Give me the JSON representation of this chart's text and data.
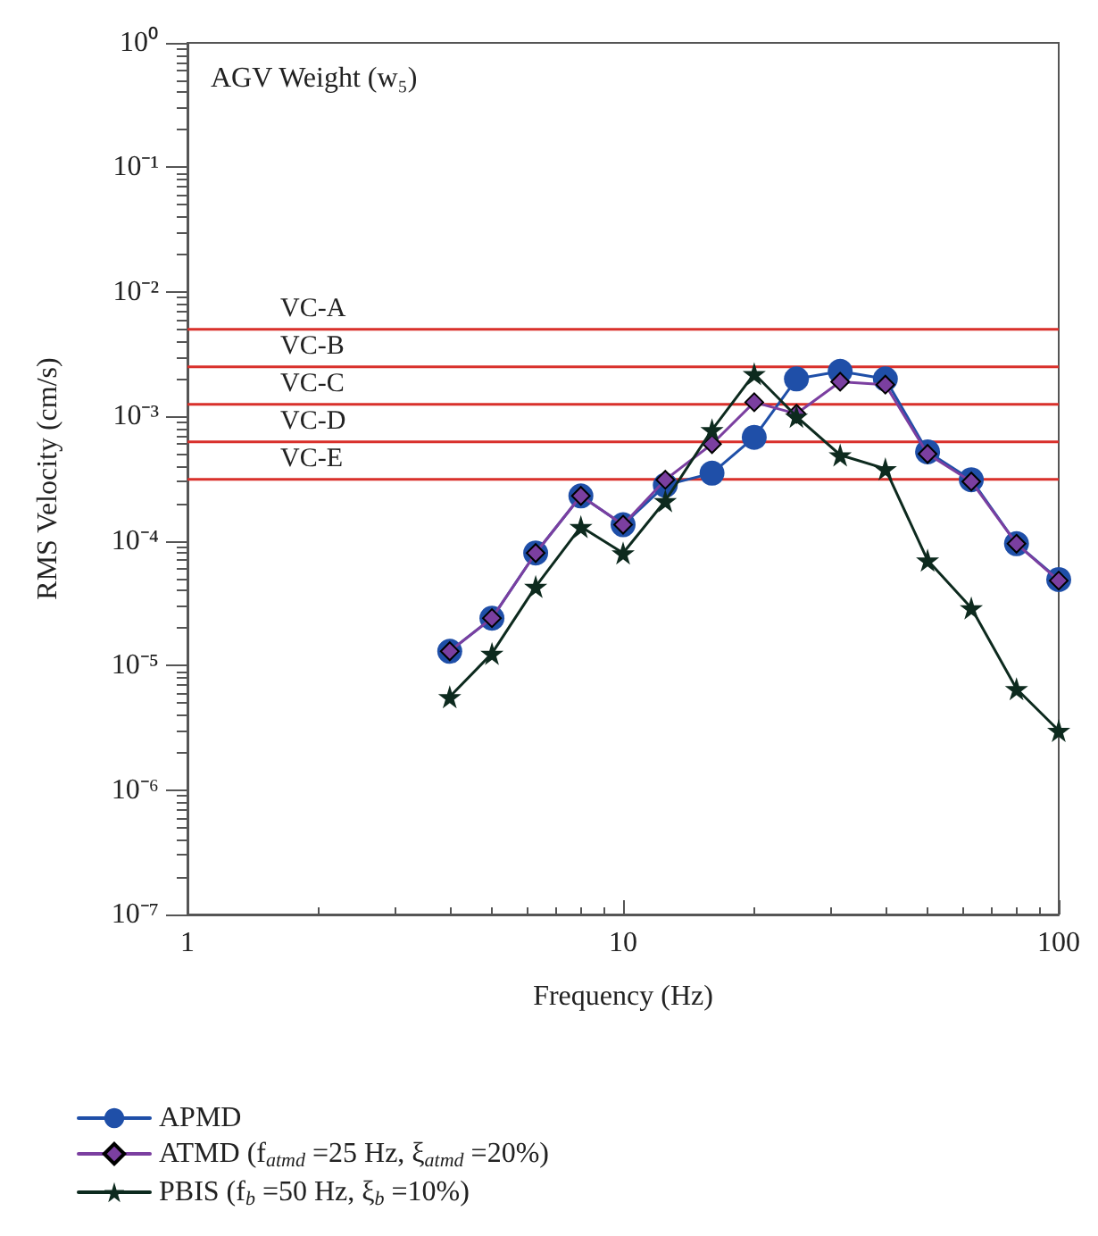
{
  "chart_data": {
    "type": "line",
    "xlabel": "Frequency (Hz)",
    "ylabel": "RMS Velocity (cm/s)",
    "log": "xy",
    "grid": false,
    "legend": "bottom left",
    "line_style": "solid",
    "annotations": [
      "AGV Weight (w₅)"
    ],
    "x": [
      4,
      5,
      6.3,
      8,
      10,
      12.5,
      16,
      20,
      25,
      31.5,
      40,
      50,
      63,
      80,
      100
    ],
    "xlim": [
      1,
      100
    ],
    "xticks": [
      1,
      10,
      100
    ],
    "ylim": [
      1e-07,
      1
    ],
    "yticks": [
      {
        "value": 1e-07,
        "label": "10⁻⁷"
      },
      {
        "value": 1e-06,
        "label": "10⁻⁶"
      },
      {
        "value": 1e-05,
        "label": "10⁻⁵"
      },
      {
        "value": 0.0001,
        "label": "10⁻⁴"
      },
      {
        "value": 0.001,
        "label": "10⁻³"
      },
      {
        "value": 0.01,
        "label": "10⁻²"
      },
      {
        "value": 0.1,
        "label": "10⁻¹"
      },
      {
        "value": 1,
        "label": "10⁰"
      }
    ],
    "series": [
      {
        "name": "APMD",
        "color": "#1f4fa8",
        "marker": "circle",
        "values": [
          1.3e-05,
          2.4e-05,
          8e-05,
          0.00023,
          0.000135,
          0.00028,
          0.00035,
          0.00068,
          0.002,
          0.0023,
          0.002,
          0.00052,
          0.00031,
          9.5e-05,
          4.9e-05
        ]
      },
      {
        "name": "ATMD (f$_{atmd}$ =25 Hz, ξ$_{atmd}$ =20%)",
        "color": "#7b3fa0",
        "marker": "diamond",
        "values": [
          1.3e-05,
          2.4e-05,
          8e-05,
          0.00023,
          0.000135,
          0.00031,
          0.0006,
          0.0013,
          0.00105,
          0.0019,
          0.0018,
          0.0005,
          0.0003,
          9.5e-05,
          4.8e-05
        ]
      },
      {
        "name": "PBIS (f$_{b}$ =50 Hz, ξ$_{b}$ =10%)",
        "color": "#0d2a1e",
        "marker": "star",
        "values": [
          5.6e-06,
          1.25e-05,
          4.3e-05,
          0.00013,
          8e-05,
          0.00021,
          0.00078,
          0.0022,
          0.001,
          0.00049,
          0.00038,
          7e-05,
          2.9e-05,
          6.5e-06,
          3e-06
        ]
      }
    ],
    "ref_lines": [
      {
        "axis": "y",
        "value": 0.005,
        "label": "VC-A",
        "color": "#d9302b"
      },
      {
        "axis": "y",
        "value": 0.0025,
        "label": "VC-B",
        "color": "#d9302b"
      },
      {
        "axis": "y",
        "value": 0.00125,
        "label": "VC-C",
        "color": "#d9302b"
      },
      {
        "axis": "y",
        "value": 0.000625,
        "label": "VC-D",
        "color": "#d9302b"
      },
      {
        "axis": "y",
        "value": 0.000312,
        "label": "VC-E",
        "color": "#d9302b"
      }
    ]
  }
}
